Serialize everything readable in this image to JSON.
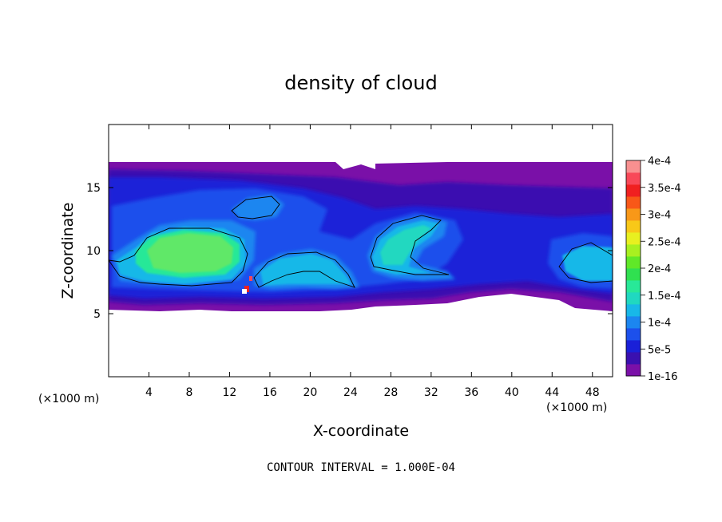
{
  "chart_data": {
    "type": "heatmap",
    "title": "density of cloud",
    "xlabel": "X-coordinate",
    "ylabel": "Z-coordinate",
    "x_unit": "(×1000 m)",
    "y_unit": "(×1000 m)",
    "xlim": [
      0,
      50
    ],
    "ylim": [
      0,
      20
    ],
    "x_ticks": [
      4,
      8,
      12,
      16,
      20,
      24,
      28,
      32,
      36,
      40,
      44,
      48
    ],
    "y_ticks": [
      5,
      10,
      15
    ],
    "colorbar": {
      "labels": [
        "1e-16",
        "5e-5",
        "1e-4",
        "1.5e-4",
        "2e-4",
        "2.5e-4",
        "3e-4",
        "3.5e-4",
        "4e-4"
      ],
      "colors": [
        "#7a10a8",
        "#3a10b0",
        "#1a20d8",
        "#1c50ec",
        "#1c86f0",
        "#18b8e8",
        "#20d8c0",
        "#28e898",
        "#30e050",
        "#60e828",
        "#a8f020",
        "#e8f020",
        "#f8c818",
        "#f89818",
        "#f85818",
        "#f02020",
        "#f84858",
        "#f89090"
      ]
    },
    "annotation": "CONTOUR INTERVAL = 1.000E-04"
  }
}
